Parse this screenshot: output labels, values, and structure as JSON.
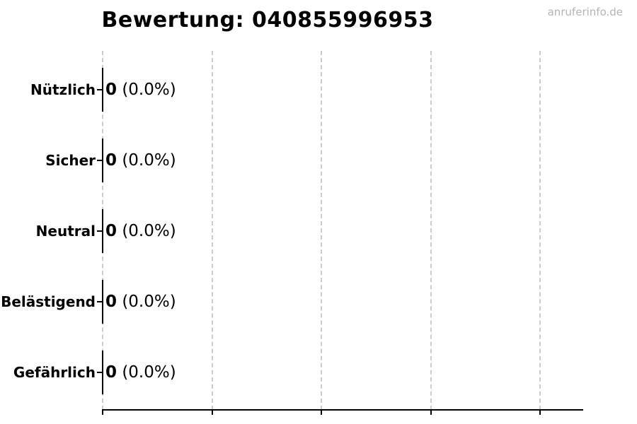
{
  "title": "Bewertung: 040855996953",
  "watermark": "anruferinfo.de",
  "chart_data": {
    "type": "bar",
    "orientation": "horizontal",
    "title": "Bewertung: 040855996953",
    "categories": [
      "Nützlich",
      "Sicher",
      "Neutral",
      "Belästigend",
      "Gefährlich"
    ],
    "values": [
      0,
      0,
      0,
      0,
      0
    ],
    "percent_labels": [
      "(0.0%)",
      "(0.0%)",
      "(0.0%)",
      "(0.0%)",
      "(0.0%)"
    ],
    "xlabel": "",
    "ylabel": "",
    "legend_position": "none",
    "grid": "vertical dashed gridlines, 5 lines, no top/left/right spines",
    "bar_edge_color": "#000000",
    "grid_color": "#cbcbcb",
    "text_color": "#000000",
    "watermark_color": "#b4b4b4",
    "background_color": "#ffffff"
  }
}
